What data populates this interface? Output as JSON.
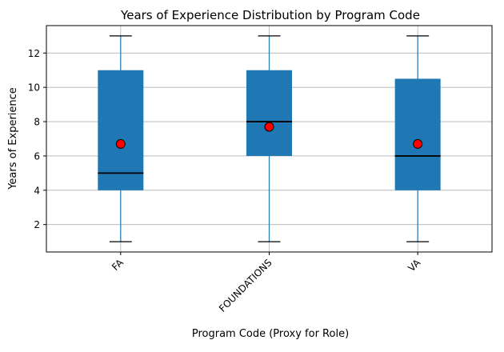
{
  "chart_data": {
    "type": "box",
    "title": "Years of Experience Distribution by Program Code",
    "xlabel": "Program Code (Proxy for Role)",
    "ylabel": "Years of Experience",
    "categories": [
      "FA",
      "FOUNDATIONS",
      "VA"
    ],
    "boxes": [
      {
        "category": "FA",
        "whisker_low": 1,
        "q1": 4,
        "median": 5,
        "q3": 11,
        "whisker_high": 13,
        "mean": 6.7
      },
      {
        "category": "FOUNDATIONS",
        "whisker_low": 1,
        "q1": 6,
        "median": 8,
        "q3": 11,
        "whisker_high": 13,
        "mean": 7.7
      },
      {
        "category": "VA",
        "whisker_low": 1,
        "q1": 4,
        "median": 6,
        "q3": 10.5,
        "whisker_high": 13,
        "mean": 6.7
      }
    ],
    "ylim": [
      0.4,
      13.6
    ],
    "yticks": [
      2,
      4,
      6,
      8,
      10,
      12
    ],
    "grid": "horizontal",
    "colors": {
      "box_fill": "#1f77b4",
      "whisker": "#1f77b4",
      "cap": "#000000",
      "median": "#000000",
      "mean_marker": "#ff0000",
      "grid": "#b0b0b0"
    }
  }
}
